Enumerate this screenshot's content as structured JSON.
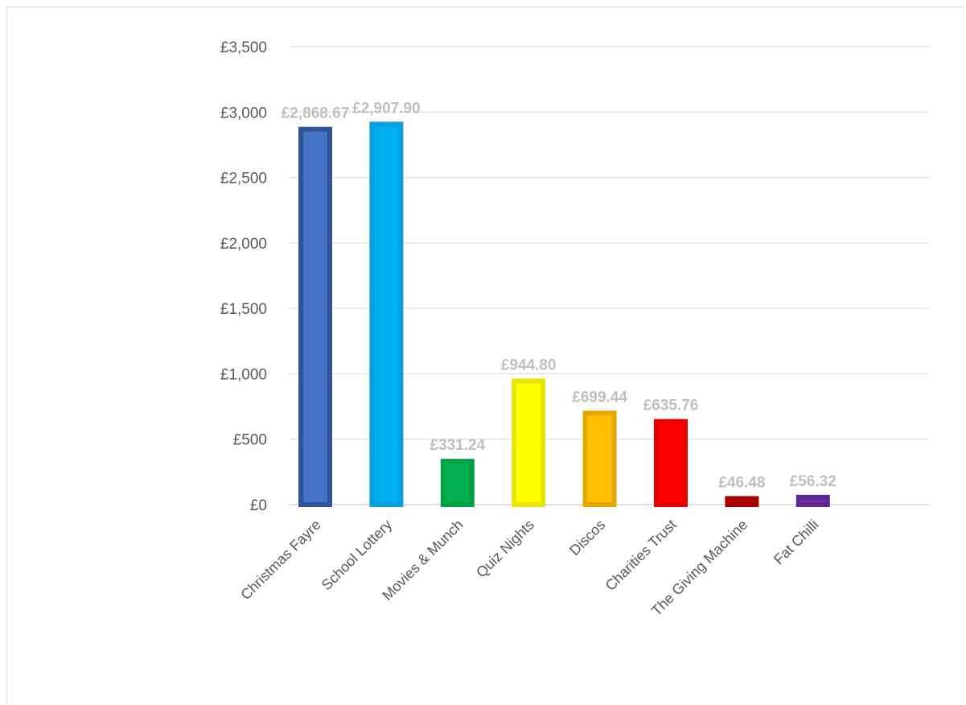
{
  "chart_data": {
    "type": "bar",
    "title": "",
    "xlabel": "",
    "ylabel": "",
    "ylim": [
      0,
      3500
    ],
    "y_ticks": [
      "£0",
      "£500",
      "£1,000",
      "£1,500",
      "£2,000",
      "£2,500",
      "£3,000",
      "£3,500"
    ],
    "y_tick_values": [
      0,
      500,
      1000,
      1500,
      2000,
      2500,
      3000,
      3500
    ],
    "grid": true,
    "legend": "none",
    "categories": [
      "Christmas Fayre",
      "School Lottery",
      "Movies & Munch",
      "Quiz Nights",
      "Discos",
      "Charities Trust",
      "The Giving Machine",
      "Fat Chilli"
    ],
    "values": [
      2868.67,
      2907.9,
      331.24,
      944.8,
      699.44,
      635.76,
      46.48,
      56.32
    ],
    "data_labels": [
      "£2,868.67",
      "£2,907.90",
      "£331.24",
      "£944.80",
      "£699.44",
      "£635.76",
      "£46.48",
      "£56.32"
    ],
    "colors": [
      "#4472c4",
      "#00b0f0",
      "#00b050",
      "#ffff00",
      "#ffc000",
      "#ff0000",
      "#c00000",
      "#7030a0"
    ],
    "border_colors": [
      "#2f5597",
      "#0b9ed8",
      "#00a047",
      "#e6e600",
      "#e6a800",
      "#e60000",
      "#a60000",
      "#5f2890"
    ]
  }
}
